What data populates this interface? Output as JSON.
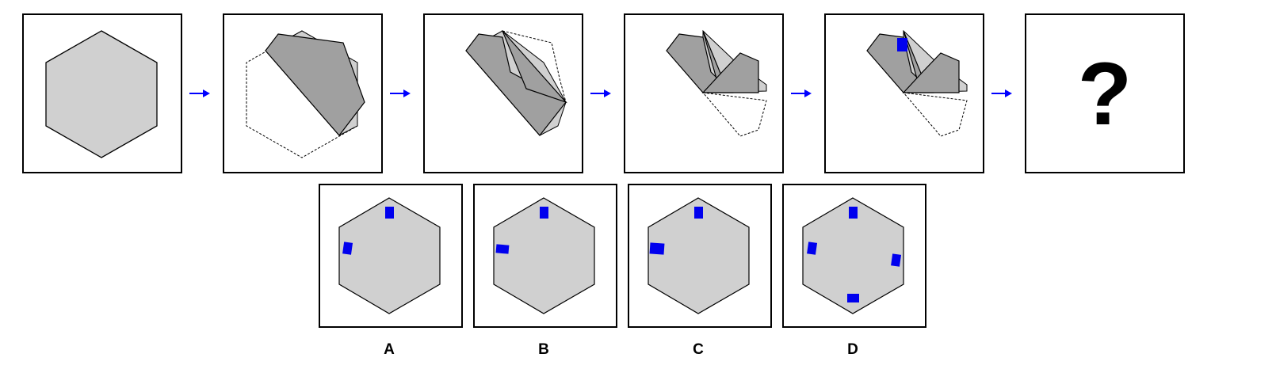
{
  "puzzle": {
    "question_mark": "?",
    "options": [
      {
        "label": "A"
      },
      {
        "label": "B"
      },
      {
        "label": "C"
      },
      {
        "label": "D"
      }
    ]
  },
  "colors": {
    "hexagon_fill": "#d0d0d0",
    "folded_fill": "#a0a0a0",
    "marker": "#0000ee",
    "arrow": "#0000ff",
    "outline": "#000000"
  }
}
